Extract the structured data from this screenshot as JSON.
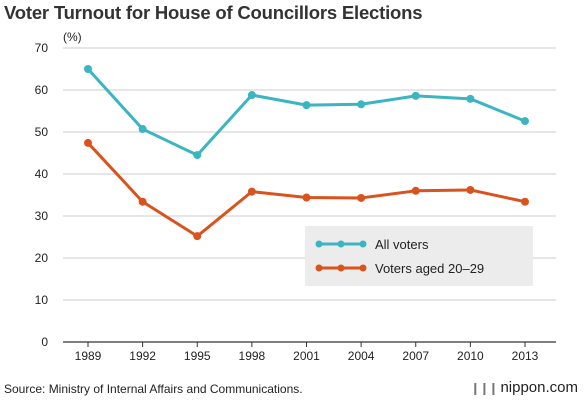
{
  "title": "Voter Turnout for House of Councillors Elections",
  "source": "Source: Ministry of Internal Affairs and Communications.",
  "brand": {
    "text": "nippon.com",
    "mark_icon": "bars-icon"
  },
  "colors": {
    "all_voters": "#3bb5c0",
    "young_voters": "#d9531e",
    "grid": "#cccccc",
    "axis": "#333333",
    "legend_bg": "#ececec"
  },
  "chart_data": {
    "type": "line",
    "ylabel": "(%)",
    "xlabel": "",
    "ylim": [
      0,
      70
    ],
    "yticks": [
      0,
      10,
      20,
      30,
      40,
      50,
      60,
      70
    ],
    "categories": [
      "1989",
      "1992",
      "1995",
      "1998",
      "2001",
      "2004",
      "2007",
      "2010",
      "2013"
    ],
    "grid": true,
    "legend_position": "center-right",
    "series": [
      {
        "name": "All voters",
        "color": "#3bb5c0",
        "values": [
          65.0,
          50.7,
          44.5,
          58.8,
          56.4,
          56.6,
          58.6,
          57.9,
          52.6
        ]
      },
      {
        "name": "Voters aged 20–29",
        "color": "#d9531e",
        "values": [
          47.4,
          33.4,
          25.2,
          35.8,
          34.4,
          34.3,
          36.0,
          36.2,
          33.4
        ]
      }
    ]
  }
}
